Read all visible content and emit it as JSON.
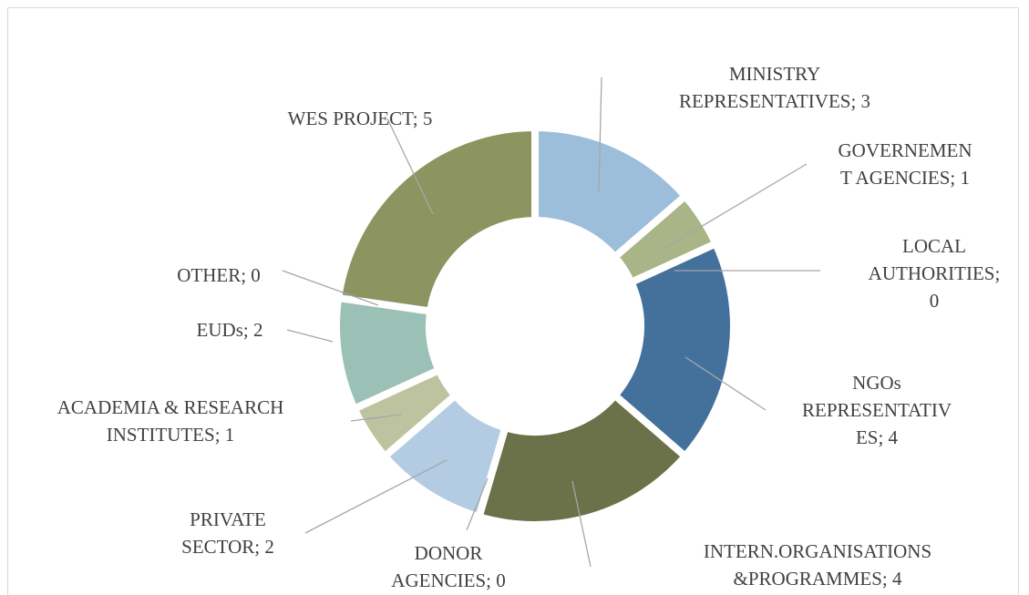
{
  "chart_data": {
    "type": "donut",
    "value_labels": [
      "MINISTRY\nREPRESENTATIVES; 3",
      "GOVERNEMEN\nT AGENCIES; 1",
      "LOCAL\nAUTHORITIES;\n0",
      "NGOs\nREPRESENTATIV\nES; 4",
      "INTERN.ORGANISATIONS\n&PROGRAMMES; 4",
      "DONOR\nAGENCIES; 0",
      "PRIVATE\nSECTOR; 2",
      "ACADEMIA & RESEARCH\nINSTITUTES; 1",
      "EUDs; 2",
      "OTHER; 0",
      "WES PROJECT; 5"
    ],
    "values": [
      3,
      1,
      0,
      4,
      4,
      0,
      2,
      1,
      2,
      0,
      5
    ],
    "colors": [
      "#9dbedb",
      "#a9b487",
      "#8fa9c9",
      "#43719c",
      "#6b7148",
      "#7d8a5a",
      "#b3cce3",
      "#bec39f",
      "#9bc0b5",
      "#7fa7a0",
      "#8c955f"
    ]
  }
}
